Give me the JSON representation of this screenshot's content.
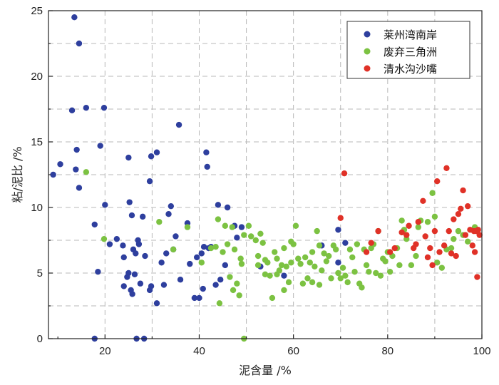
{
  "chart_data": {
    "type": "scatter",
    "xlabel": "泥含量 /%",
    "ylabel": "粘/泥比 /%",
    "xlim": [
      8,
      100
    ],
    "ylim": [
      0,
      25
    ],
    "x_ticks": [
      20,
      40,
      60,
      80,
      100
    ],
    "y_ticks": [
      0,
      5,
      10,
      15,
      20,
      25
    ],
    "x_grid": [
      20,
      30,
      40,
      50,
      60,
      70,
      80,
      90
    ],
    "y_grid": [
      2.5,
      5,
      7.5,
      10,
      12.5,
      15,
      17.5,
      20,
      22.5
    ],
    "grid": true,
    "legend_position": "top-right",
    "series": [
      {
        "name": "莱州湾南岸",
        "color": "#2e3f9e",
        "points": [
          [
            9,
            12.5
          ],
          [
            10.5,
            13.3
          ],
          [
            13,
            17.4
          ],
          [
            13.5,
            24.5
          ],
          [
            13.8,
            12.9
          ],
          [
            14,
            14.4
          ],
          [
            14.5,
            22.5
          ],
          [
            14.5,
            11.5
          ],
          [
            16,
            17.6
          ],
          [
            17.8,
            8.7
          ],
          [
            17.8,
            0
          ],
          [
            18.5,
            5.1
          ],
          [
            19,
            14.7
          ],
          [
            19.8,
            17.6
          ],
          [
            20,
            10.2
          ],
          [
            21,
            7.2
          ],
          [
            22.5,
            7.6
          ],
          [
            23.8,
            7.1
          ],
          [
            24,
            6.2
          ],
          [
            24,
            4
          ],
          [
            24.7,
            4.7
          ],
          [
            25,
            13.8
          ],
          [
            25,
            5
          ],
          [
            25.2,
            10.4
          ],
          [
            25.5,
            3.7
          ],
          [
            25.7,
            9.4
          ],
          [
            26,
            6.8
          ],
          [
            25.8,
            3.4
          ],
          [
            26.3,
            4.9
          ],
          [
            26.5,
            6.5
          ],
          [
            26.7,
            0
          ],
          [
            27,
            7.5
          ],
          [
            27.2,
            7.2
          ],
          [
            27.5,
            4.2
          ],
          [
            28,
            9.3
          ],
          [
            28.3,
            0
          ],
          [
            28.5,
            6.3
          ],
          [
            29.5,
            12
          ],
          [
            29.5,
            3.7
          ],
          [
            29.8,
            4
          ],
          [
            29.8,
            13.9
          ],
          [
            31,
            14.2
          ],
          [
            31,
            2.7
          ],
          [
            32,
            5.8
          ],
          [
            32.5,
            4.1
          ],
          [
            33,
            6.5
          ],
          [
            33.5,
            9.5
          ],
          [
            34,
            10.1
          ],
          [
            34.5,
            6.8
          ],
          [
            35,
            7.8
          ],
          [
            35.7,
            16.3
          ],
          [
            36,
            4.5
          ],
          [
            37.5,
            8.8
          ],
          [
            38,
            5.7
          ],
          [
            39,
            3.1
          ],
          [
            39.5,
            6.2
          ],
          [
            40,
            3.1
          ],
          [
            40.5,
            6.5
          ],
          [
            40.8,
            3.8
          ],
          [
            41,
            7
          ],
          [
            41.5,
            14.2
          ],
          [
            41.7,
            13.1
          ],
          [
            42,
            6.9
          ],
          [
            42.5,
            7
          ],
          [
            43.5,
            4.1
          ],
          [
            44,
            10.2
          ],
          [
            44.5,
            4.5
          ],
          [
            45.5,
            5.6
          ],
          [
            46,
            10
          ],
          [
            47.5,
            8.6
          ],
          [
            48,
            7.7
          ],
          [
            49,
            8.5
          ],
          [
            53,
            5.5
          ],
          [
            58,
            4.8
          ],
          [
            66,
            7.1
          ],
          [
            69.5,
            8.3
          ],
          [
            69.5,
            5.8
          ],
          [
            71,
            7.3
          ]
        ]
      },
      {
        "name": "废弃三角洲",
        "color": "#7cc242",
        "points": [
          [
            16,
            12.7
          ],
          [
            19.8,
            7.6
          ],
          [
            31.5,
            8.9
          ],
          [
            34.5,
            6.8
          ],
          [
            37.5,
            8.5
          ],
          [
            40.5,
            5.8
          ],
          [
            42.5,
            6.9
          ],
          [
            43.5,
            7
          ],
          [
            44,
            9.1
          ],
          [
            44.3,
            2.7
          ],
          [
            45,
            6.6
          ],
          [
            45.5,
            8.6
          ],
          [
            46,
            7.2
          ],
          [
            46.5,
            4.7
          ],
          [
            47,
            8.5
          ],
          [
            47.2,
            3.7
          ],
          [
            47.5,
            6.8
          ],
          [
            48,
            4.2
          ],
          [
            48.5,
            3.3
          ],
          [
            48.8,
            6.1
          ],
          [
            49,
            5.7
          ],
          [
            49.5,
            7.9
          ],
          [
            49.5,
            0
          ],
          [
            50.5,
            8.6
          ],
          [
            51,
            7.8
          ],
          [
            52,
            7.5
          ],
          [
            52.5,
            6.3
          ],
          [
            52.5,
            5.6
          ],
          [
            53,
            8
          ],
          [
            53.5,
            7.3
          ],
          [
            54,
            4.9
          ],
          [
            54,
            6
          ],
          [
            54.5,
            5.8
          ],
          [
            55,
            4.8
          ],
          [
            55.5,
            3.1
          ],
          [
            56,
            6.6
          ],
          [
            56.5,
            4.9
          ],
          [
            56.5,
            6.1
          ],
          [
            57,
            5.2
          ],
          [
            57.5,
            5.6
          ],
          [
            58,
            6.9
          ],
          [
            58,
            3.7
          ],
          [
            58.5,
            5.5
          ],
          [
            59,
            4.3
          ],
          [
            59.5,
            7.4
          ],
          [
            59.5,
            5.8
          ],
          [
            60,
            7.2
          ],
          [
            60.5,
            8.6
          ],
          [
            61,
            6.1
          ],
          [
            61.5,
            5.7
          ],
          [
            62,
            4.2
          ],
          [
            62.5,
            6.2
          ],
          [
            63,
            4.6
          ],
          [
            63.5,
            5.8
          ],
          [
            64,
            6.6
          ],
          [
            64,
            4.3
          ],
          [
            64.5,
            5.5
          ],
          [
            65,
            8.2
          ],
          [
            65.5,
            7.1
          ],
          [
            65.5,
            4.1
          ],
          [
            66,
            5.2
          ],
          [
            66.5,
            6.5
          ],
          [
            67,
            5.9
          ],
          [
            67.5,
            6.3
          ],
          [
            68,
            4.6
          ],
          [
            68.5,
            7.1
          ],
          [
            69,
            6.8
          ],
          [
            69.5,
            5
          ],
          [
            70,
            4.6
          ],
          [
            70.5,
            5.4
          ],
          [
            71,
            4.8
          ],
          [
            71.5,
            4.3
          ],
          [
            72,
            6.8
          ],
          [
            72.5,
            6.2
          ],
          [
            73,
            5.1
          ],
          [
            73.5,
            7.2
          ],
          [
            74,
            4.2
          ],
          [
            74.5,
            3.9
          ],
          [
            75,
            6.8
          ],
          [
            75.5,
            5.6
          ],
          [
            76,
            5.1
          ],
          [
            76.5,
            6.9
          ],
          [
            77,
            7.2
          ],
          [
            77.5,
            5
          ],
          [
            78,
            8.2
          ],
          [
            78.5,
            4.8
          ],
          [
            79,
            6.1
          ],
          [
            79.5,
            5.9
          ],
          [
            80,
            6.6
          ],
          [
            80.5,
            5.1
          ],
          [
            81,
            6.3
          ],
          [
            82,
            6.9
          ],
          [
            82.5,
            5.6
          ],
          [
            83,
            9
          ],
          [
            83.5,
            8.3
          ],
          [
            84,
            7.6
          ],
          [
            85,
            5.6
          ],
          [
            86,
            6.3
          ],
          [
            86.5,
            8.5
          ],
          [
            87,
            9
          ],
          [
            88.5,
            8.9
          ],
          [
            89.5,
            11.1
          ],
          [
            90,
            9.3
          ],
          [
            90.5,
            5.8
          ],
          [
            91.5,
            5.4
          ],
          [
            92.5,
            6.8
          ],
          [
            93.5,
            6.9
          ],
          [
            94,
            7.6
          ],
          [
            95,
            8.2
          ],
          [
            96,
            7.9
          ],
          [
            97,
            7.4
          ],
          [
            98.5,
            8.5
          ]
        ]
      },
      {
        "name": "清水沟沙嘴",
        "color": "#e03127",
        "points": [
          [
            70,
            9.2
          ],
          [
            70.8,
            12.6
          ],
          [
            75.5,
            6.6
          ],
          [
            76.5,
            7.3
          ],
          [
            78,
            8.2
          ],
          [
            80.5,
            6.6
          ],
          [
            81.5,
            6.9
          ],
          [
            83,
            8.1
          ],
          [
            84,
            7.9
          ],
          [
            84.5,
            8.6
          ],
          [
            85.5,
            6.9
          ],
          [
            86,
            7.2
          ],
          [
            86.5,
            8.9
          ],
          [
            87.5,
            10.5
          ],
          [
            88,
            7.8
          ],
          [
            88.5,
            6.2
          ],
          [
            89,
            6.9
          ],
          [
            89.5,
            5.6
          ],
          [
            90,
            8.2
          ],
          [
            90.5,
            12
          ],
          [
            91,
            6.6
          ],
          [
            92,
            7.1
          ],
          [
            92.5,
            13
          ],
          [
            93,
            8.2
          ],
          [
            93.5,
            6.5
          ],
          [
            94,
            9.1
          ],
          [
            94.5,
            6.3
          ],
          [
            95,
            9.5
          ],
          [
            95.5,
            9.9
          ],
          [
            96,
            11.3
          ],
          [
            96.5,
            7.9
          ],
          [
            97,
            10.1
          ],
          [
            97.5,
            8.3
          ],
          [
            98,
            7.1
          ],
          [
            98.3,
            8.2
          ],
          [
            98.5,
            6.6
          ],
          [
            98.8,
            8.2
          ],
          [
            99,
            4.7
          ],
          [
            99.2,
            8.3
          ],
          [
            99.5,
            7.9
          ]
        ]
      }
    ]
  }
}
